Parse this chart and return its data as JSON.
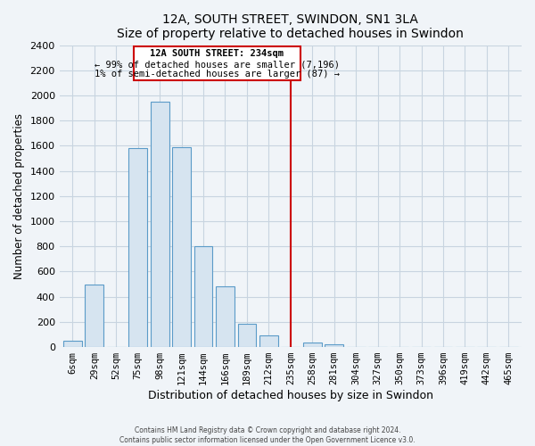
{
  "title": "12A, SOUTH STREET, SWINDON, SN1 3LA",
  "subtitle": "Size of property relative to detached houses in Swindon",
  "xlabel": "Distribution of detached houses by size in Swindon",
  "ylabel": "Number of detached properties",
  "bar_labels": [
    "6sqm",
    "29sqm",
    "52sqm",
    "75sqm",
    "98sqm",
    "121sqm",
    "144sqm",
    "166sqm",
    "189sqm",
    "212sqm",
    "235sqm",
    "258sqm",
    "281sqm",
    "304sqm",
    "327sqm",
    "350sqm",
    "373sqm",
    "396sqm",
    "419sqm",
    "442sqm",
    "465sqm"
  ],
  "bar_values": [
    50,
    500,
    0,
    1580,
    1950,
    1590,
    800,
    480,
    185,
    90,
    0,
    35,
    25,
    0,
    0,
    0,
    0,
    0,
    0,
    0,
    0
  ],
  "bar_color": "#d6e4f0",
  "bar_edgecolor": "#5b9bc8",
  "vline_x_idx": 10,
  "vline_color": "#cc0000",
  "annotation_title": "12A SOUTH STREET: 234sqm",
  "annotation_line1": "← 99% of detached houses are smaller (7,196)",
  "annotation_line2": "1% of semi-detached houses are larger (87) →",
  "annotation_box_edgecolor": "#cc0000",
  "ylim": [
    0,
    2400
  ],
  "yticks": [
    0,
    200,
    400,
    600,
    800,
    1000,
    1200,
    1400,
    1600,
    1800,
    2000,
    2200,
    2400
  ],
  "footer1": "Contains HM Land Registry data © Crown copyright and database right 2024.",
  "footer2": "Contains public sector information licensed under the Open Government Licence v3.0.",
  "bg_color": "#f0f4f8",
  "grid_color": "#c8d4e0"
}
